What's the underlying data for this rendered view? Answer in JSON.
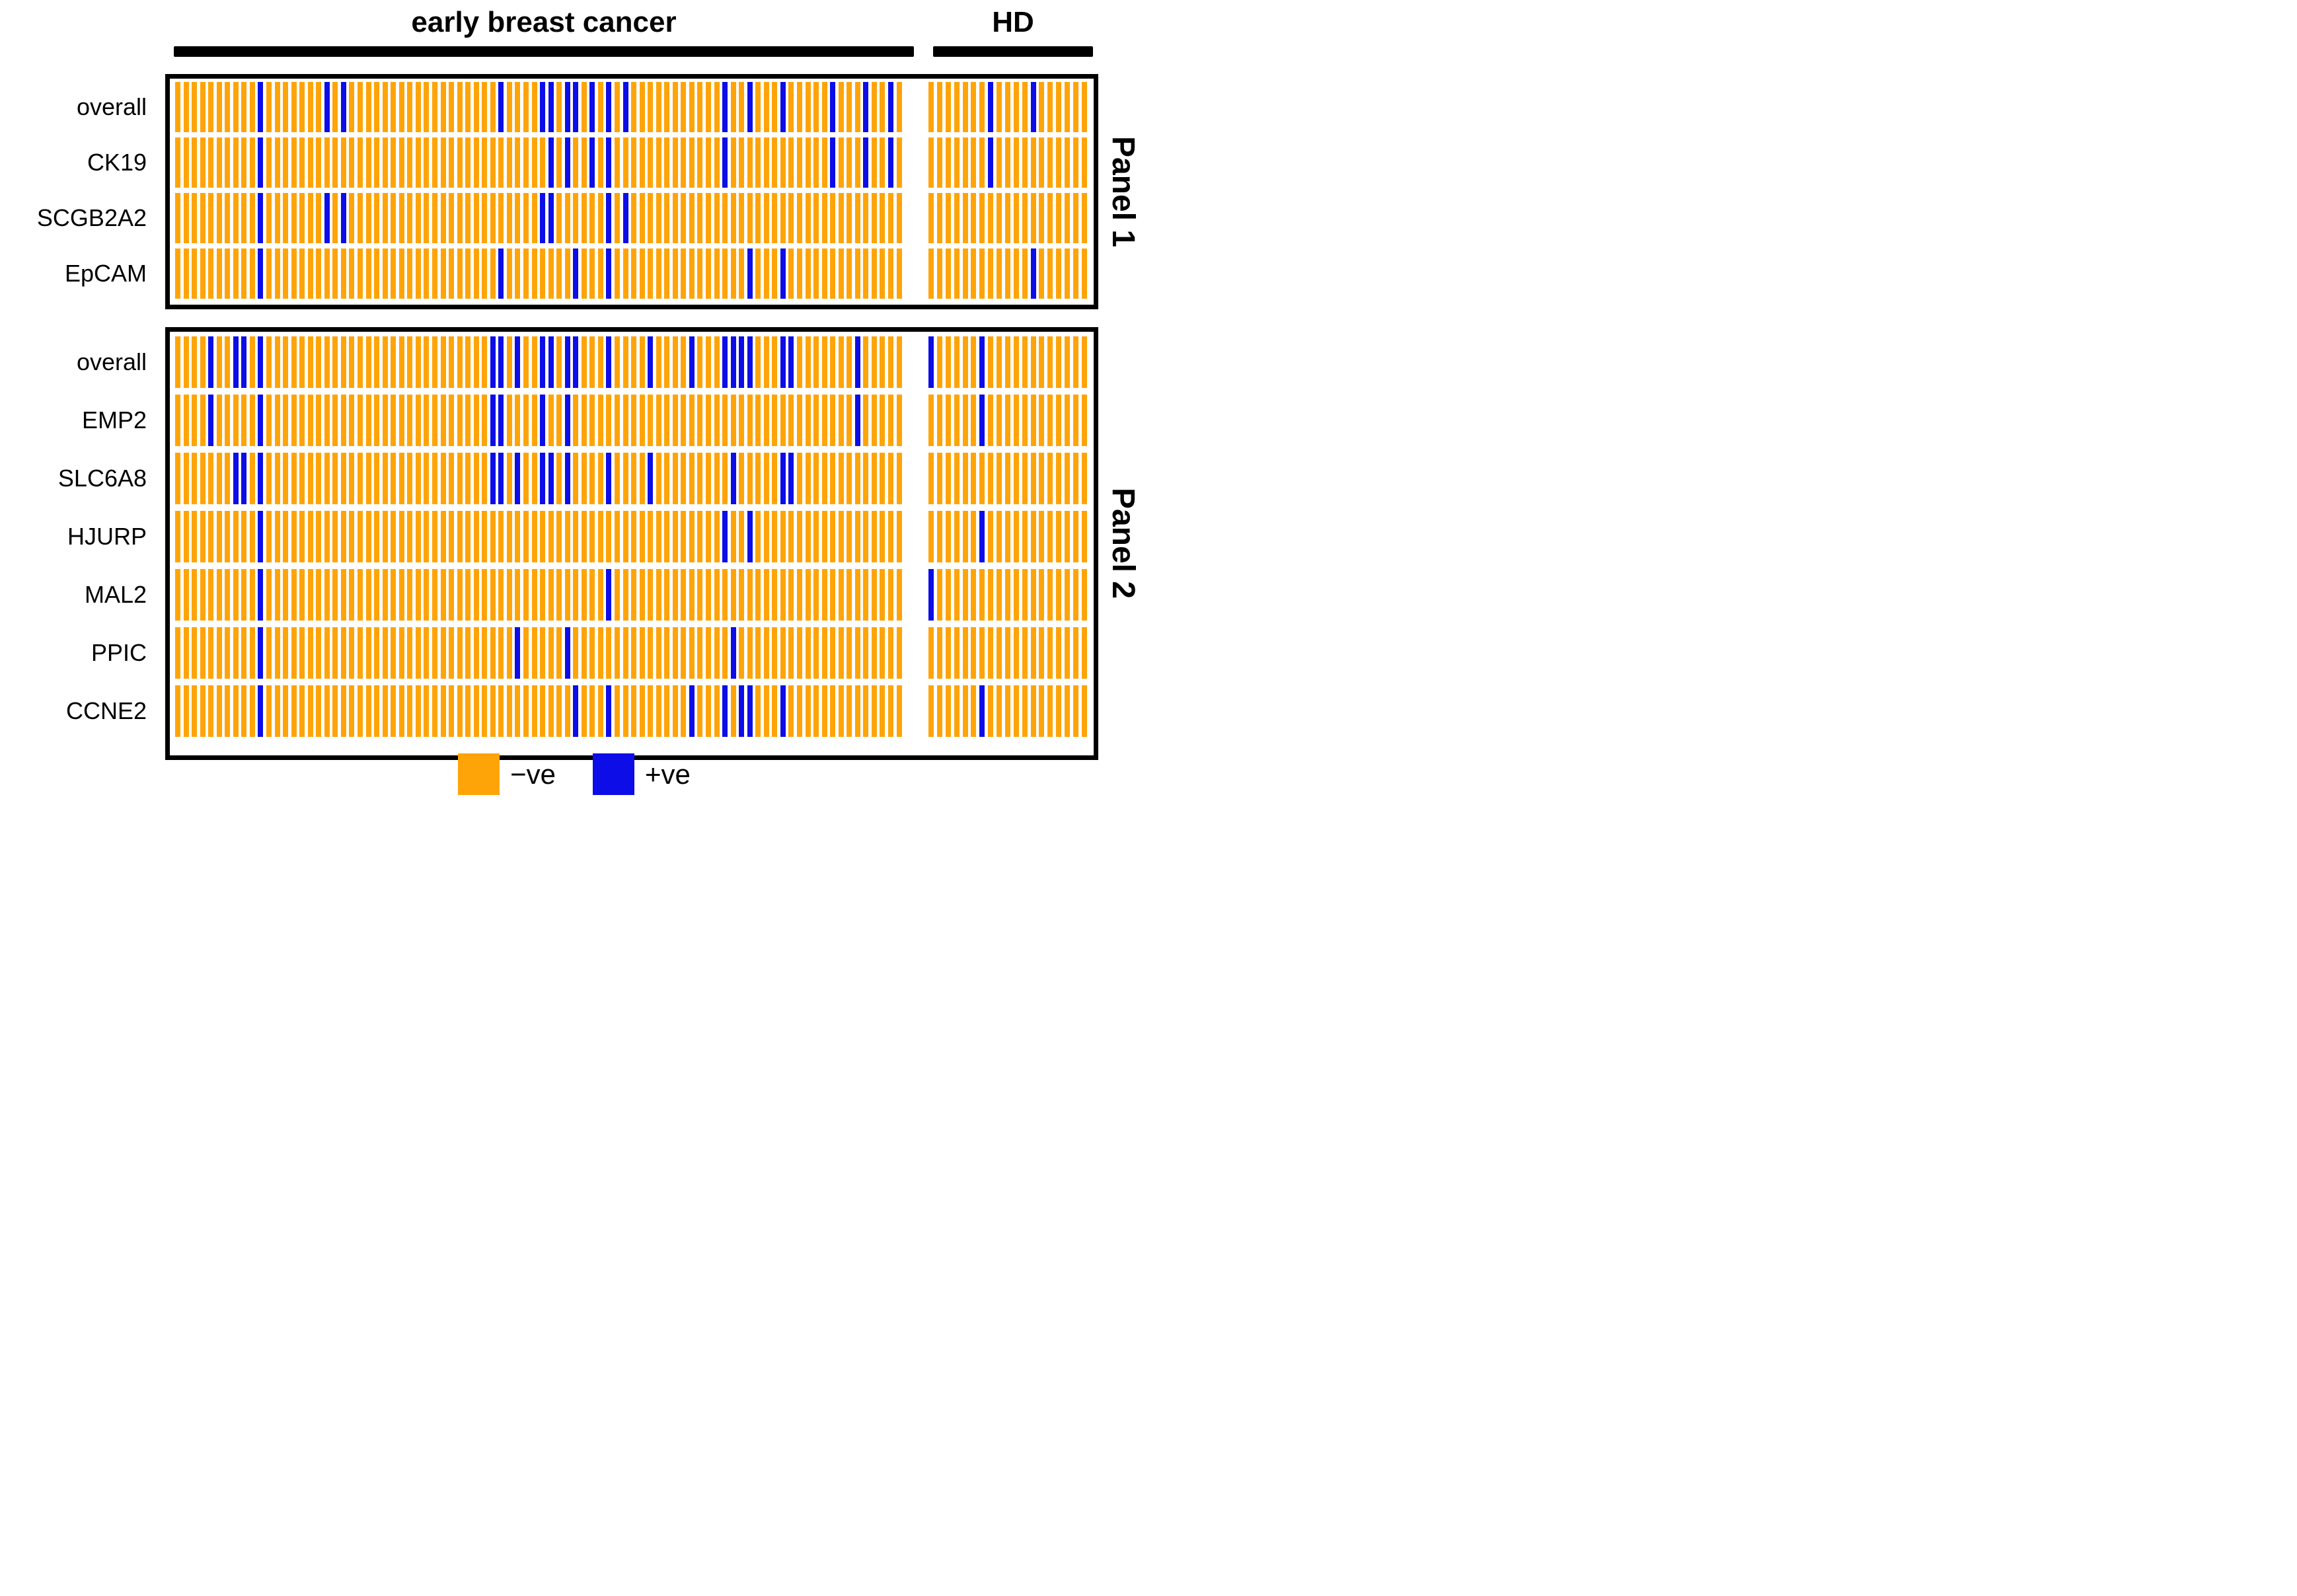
{
  "chart_data": {
    "type": "heatmap",
    "description_layout": "two stacked panels of per-sample positivity bars",
    "groups": [
      {
        "key": "ebc",
        "label": "early breast cancer",
        "n_columns": 88
      },
      {
        "key": "hd",
        "label": "HD",
        "n_columns": 19
      }
    ],
    "value_encoding": {
      "negative": {
        "label": "−ve",
        "color": "#FFA408"
      },
      "positive": {
        "label": "+ve",
        "color": "#0D0DE8"
      }
    },
    "panels": [
      {
        "title": "Panel 1",
        "rows": [
          {
            "label": "overall",
            "ebc_positive": [
              10,
              18,
              20,
              39,
              44,
              45,
              47,
              48,
              50,
              52,
              54,
              66,
              69,
              73,
              79,
              83,
              86
            ],
            "hd_positive": [
              7,
              12
            ]
          },
          {
            "label": "CK19",
            "ebc_positive": [
              10,
              45,
              47,
              50,
              52,
              66,
              79,
              83,
              86
            ],
            "hd_positive": [
              7
            ]
          },
          {
            "label": "SCGB2A2",
            "ebc_positive": [
              10,
              18,
              20,
              44,
              45,
              52,
              54
            ],
            "hd_positive": []
          },
          {
            "label": "EpCAM",
            "ebc_positive": [
              10,
              39,
              48,
              52,
              69,
              73
            ],
            "hd_positive": [
              12
            ]
          }
        ]
      },
      {
        "title": "Panel 2",
        "rows": [
          {
            "label": "overall",
            "ebc_positive": [
              4,
              7,
              8,
              10,
              38,
              39,
              41,
              44,
              45,
              47,
              48,
              52,
              57,
              62,
              66,
              67,
              68,
              69,
              73,
              74,
              82
            ],
            "hd_positive": [
              0,
              6
            ]
          },
          {
            "label": "EMP2",
            "ebc_positive": [
              4,
              10,
              38,
              39,
              44,
              47,
              82
            ],
            "hd_positive": [
              6
            ]
          },
          {
            "label": "SLC6A8",
            "ebc_positive": [
              7,
              8,
              10,
              38,
              39,
              41,
              44,
              45,
              47,
              52,
              57,
              67,
              73,
              74
            ],
            "hd_positive": []
          },
          {
            "label": "HJURP",
            "ebc_positive": [
              10,
              66,
              69
            ],
            "hd_positive": [
              6
            ]
          },
          {
            "label": "MAL2",
            "ebc_positive": [
              10,
              52
            ],
            "hd_positive": [
              0
            ]
          },
          {
            "label": "PPIC",
            "ebc_positive": [
              10,
              41,
              47,
              67
            ],
            "hd_positive": []
          },
          {
            "label": "CCNE2",
            "ebc_positive": [
              10,
              48,
              52,
              62,
              66,
              68,
              69,
              73
            ],
            "hd_positive": [
              6
            ]
          }
        ]
      }
    ],
    "legend": [
      {
        "label": "−ve",
        "meaning": "negative"
      },
      {
        "label": "+ve",
        "meaning": "positive"
      }
    ]
  }
}
